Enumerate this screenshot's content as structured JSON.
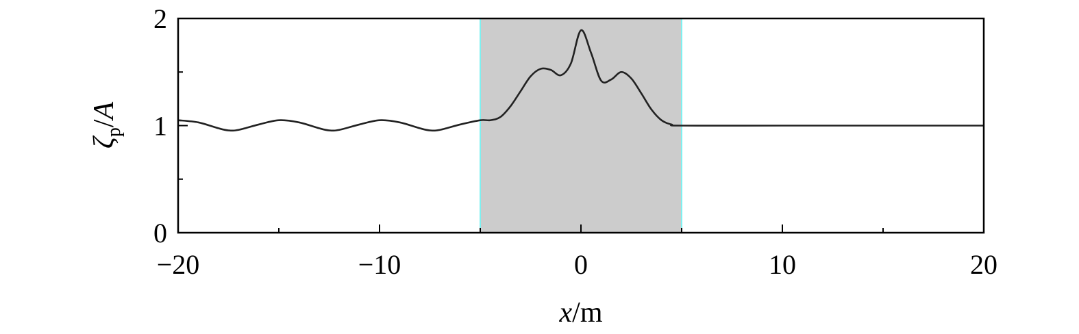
{
  "chart_data": {
    "type": "line",
    "xlabel": {
      "var": "x",
      "sep": "/",
      "unit": "m"
    },
    "ylabel": {
      "var": "ζ",
      "sub": "p",
      "sep": "/",
      "den": "A"
    },
    "xlim": [
      -20,
      20
    ],
    "ylim": [
      0,
      2
    ],
    "x_ticks": [
      -20,
      -10,
      0,
      10,
      20
    ],
    "x_tick_labels": [
      "−20",
      "−10",
      "0",
      "10",
      "20"
    ],
    "x_minor_ticks": [
      -15,
      -5,
      5,
      15
    ],
    "y_ticks": [
      0,
      1,
      2
    ],
    "y_tick_labels": [
      "0",
      "1",
      "2"
    ],
    "y_minor_ticks": [
      0.5,
      1.5
    ],
    "grid": false,
    "shaded_region": {
      "x_range": [
        -5,
        5
      ],
      "fill": "#cccccc",
      "edge": "#7ff0f0"
    },
    "line_color": "#222222",
    "series": [
      {
        "x": [
          -20,
          -19,
          -18,
          -17.5,
          -17,
          -16,
          -15,
          -14,
          -13,
          -12.5,
          -12,
          -11,
          -10,
          -9,
          -8,
          -7.5,
          -7,
          -6,
          -5,
          -4.5,
          -4,
          -3.5,
          -3,
          -2.5,
          -2,
          -1.5,
          -1,
          -0.5,
          0,
          0.5,
          1,
          1.5,
          2,
          2.5,
          3,
          3.5,
          4,
          4.5,
          5,
          10,
          15,
          20
        ],
        "y": [
          1.05,
          1.03,
          0.975,
          0.955,
          0.96,
          1.01,
          1.05,
          1.03,
          0.975,
          0.955,
          0.96,
          1.01,
          1.05,
          1.03,
          0.975,
          0.955,
          0.96,
          1.01,
          1.05,
          1.05,
          1.08,
          1.18,
          1.32,
          1.46,
          1.53,
          1.52,
          1.47,
          1.58,
          1.89,
          1.68,
          1.42,
          1.43,
          1.5,
          1.44,
          1.3,
          1.15,
          1.05,
          1.01,
          1.0,
          1.0,
          1.0,
          1.0
        ]
      }
    ]
  }
}
